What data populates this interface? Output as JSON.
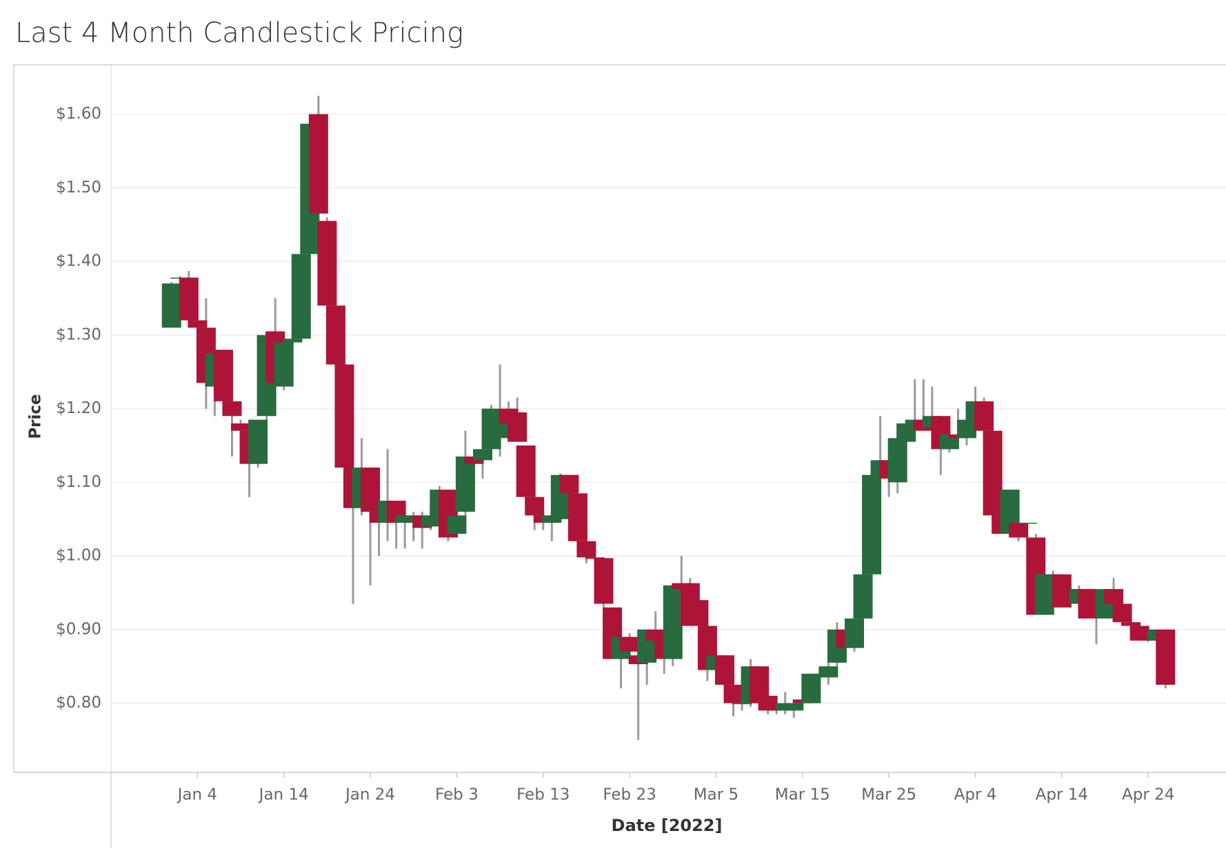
{
  "chart_data": {
    "type": "candlestick",
    "title": "Last 4 Month Candlestick Pricing",
    "x_label": "Date [2022]",
    "y_label": "Price",
    "up_color": "#276b3f",
    "down_color": "#ad1438",
    "wick_color": "#9a9a9a",
    "grid": true,
    "x": [
      "2022-01-01",
      "2022-01-02",
      "2022-01-03",
      "2022-01-04",
      "2022-01-05",
      "2022-01-06",
      "2022-01-07",
      "2022-01-08",
      "2022-01-09",
      "2022-01-10",
      "2022-01-11",
      "2022-01-12",
      "2022-01-13",
      "2022-01-14",
      "2022-01-15",
      "2022-01-16",
      "2022-01-17",
      "2022-01-18",
      "2022-01-19",
      "2022-01-20",
      "2022-01-21",
      "2022-01-22",
      "2022-01-23",
      "2022-01-24",
      "2022-01-25",
      "2022-01-26",
      "2022-01-27",
      "2022-01-28",
      "2022-01-29",
      "2022-01-30",
      "2022-01-31",
      "2022-02-01",
      "2022-02-02",
      "2022-02-03",
      "2022-02-04",
      "2022-02-05",
      "2022-02-06",
      "2022-02-07",
      "2022-02-08",
      "2022-02-09",
      "2022-02-10",
      "2022-02-11",
      "2022-02-12",
      "2022-02-13",
      "2022-02-14",
      "2022-02-15",
      "2022-02-16",
      "2022-02-17",
      "2022-02-18",
      "2022-02-19",
      "2022-02-20",
      "2022-02-21",
      "2022-02-22",
      "2022-02-23",
      "2022-02-24",
      "2022-02-25",
      "2022-02-26",
      "2022-02-27",
      "2022-02-28",
      "2022-03-01",
      "2022-03-02",
      "2022-03-03",
      "2022-03-04",
      "2022-03-05",
      "2022-03-06",
      "2022-03-07",
      "2022-03-08",
      "2022-03-09",
      "2022-03-10",
      "2022-03-11",
      "2022-03-12",
      "2022-03-13",
      "2022-03-14",
      "2022-03-15",
      "2022-03-16",
      "2022-03-17",
      "2022-03-18",
      "2022-03-19",
      "2022-03-20",
      "2022-03-21",
      "2022-03-22",
      "2022-03-23",
      "2022-03-24",
      "2022-03-25",
      "2022-03-26",
      "2022-03-27",
      "2022-03-28",
      "2022-03-29",
      "2022-03-30",
      "2022-03-31",
      "2022-04-01",
      "2022-04-02",
      "2022-04-03",
      "2022-04-04",
      "2022-04-05",
      "2022-04-06",
      "2022-04-07",
      "2022-04-08",
      "2022-04-09",
      "2022-04-10",
      "2022-04-11",
      "2022-04-12",
      "2022-04-13",
      "2022-04-14",
      "2022-04-15",
      "2022-04-16",
      "2022-04-17",
      "2022-04-18",
      "2022-04-19",
      "2022-04-20",
      "2022-04-21",
      "2022-04-22",
      "2022-04-23",
      "2022-04-24",
      "2022-04-25",
      "2022-04-26"
    ],
    "open": [
      1.31,
      1.377,
      1.378,
      1.32,
      1.31,
      1.23,
      1.28,
      1.21,
      1.18,
      1.17,
      1.125,
      1.19,
      1.305,
      1.23,
      1.29,
      1.295,
      1.41,
      1.6,
      1.455,
      1.34,
      1.26,
      1.12,
      1.065,
      1.12,
      1.06,
      1.045,
      1.075,
      1.045,
      1.045,
      1.055,
      1.04,
      1.05,
      1.09,
      1.03,
      1.06,
      1.135,
      1.13,
      1.145,
      1.16,
      1.2,
      1.195,
      1.15,
      1.08,
      1.055,
      1.045,
      1.05,
      1.11,
      1.085,
      1.02,
      0.998,
      0.997,
      0.93,
      0.86,
      0.89,
      0.865,
      0.855,
      0.9,
      0.89,
      0.86,
      0.963,
      0.963,
      0.94,
      0.905,
      0.845,
      0.865,
      0.825,
      0.8,
      0.8,
      0.85,
      0.81,
      0.795,
      0.79,
      0.79,
      0.805,
      0.8,
      0.835,
      0.835,
      0.855,
      0.9,
      0.875,
      0.915,
      0.975,
      1.105,
      1.13,
      1.1,
      1.155,
      1.175,
      1.185,
      1.175,
      1.19,
      1.145,
      1.165,
      1.16,
      1.185,
      1.21,
      1.17,
      1.09,
      1.03,
      1.045,
      1.044,
      1.025,
      0.92,
      0.95,
      0.975,
      0.955,
      0.935,
      0.955,
      0.95,
      0.915,
      0.955,
      0.935,
      0.91,
      0.905,
      0.89,
      0.885,
      0.9
    ],
    "high": [
      1.372,
      1.38,
      1.387,
      1.35,
      1.35,
      1.278,
      1.28,
      1.21,
      1.185,
      1.17,
      1.185,
      1.305,
      1.35,
      1.295,
      1.3,
      1.41,
      1.59,
      1.625,
      1.46,
      1.34,
      1.26,
      1.12,
      1.16,
      1.12,
      1.065,
      1.145,
      1.075,
      1.065,
      1.06,
      1.06,
      1.07,
      1.095,
      1.09,
      1.06,
      1.17,
      1.14,
      1.15,
      1.205,
      1.26,
      1.21,
      1.215,
      1.15,
      1.08,
      1.06,
      1.06,
      1.112,
      1.11,
      1.085,
      1.02,
      0.998,
      0.997,
      0.93,
      0.93,
      0.895,
      0.87,
      0.9,
      0.925,
      0.89,
      0.963,
      1.0,
      0.97,
      0.94,
      0.905,
      0.87,
      0.865,
      0.825,
      0.81,
      0.86,
      0.85,
      0.81,
      0.795,
      0.815,
      0.805,
      0.81,
      0.84,
      0.845,
      0.855,
      0.91,
      0.905,
      0.92,
      0.975,
      1.11,
      1.19,
      1.13,
      1.18,
      1.185,
      1.24,
      1.24,
      1.23,
      1.19,
      1.17,
      1.2,
      1.19,
      1.23,
      1.215,
      1.17,
      1.1,
      1.09,
      1.045,
      1.045,
      1.03,
      0.975,
      0.98,
      0.975,
      0.96,
      0.96,
      0.955,
      0.95,
      0.955,
      0.97,
      0.935,
      0.91,
      0.905,
      0.89,
      0.9,
      0.9
    ],
    "low": [
      1.31,
      1.375,
      1.32,
      1.31,
      1.2,
      1.19,
      1.19,
      1.135,
      1.165,
      1.08,
      1.12,
      1.185,
      1.225,
      1.225,
      1.285,
      1.29,
      1.41,
      1.465,
      1.34,
      1.26,
      1.12,
      0.935,
      1.055,
      0.96,
      1.0,
      1.02,
      1.01,
      1.01,
      1.02,
      1.01,
      1.035,
      1.045,
      1.02,
      1.025,
      1.055,
      1.12,
      1.105,
      1.14,
      1.135,
      1.18,
      1.155,
      1.07,
      1.035,
      1.035,
      1.02,
      1.045,
      1.085,
      1.01,
      0.99,
      0.99,
      0.93,
      0.86,
      0.82,
      0.865,
      0.75,
      0.825,
      0.88,
      0.84,
      0.85,
      0.95,
      0.905,
      0.905,
      0.83,
      0.84,
      0.825,
      0.782,
      0.79,
      0.795,
      0.795,
      0.785,
      0.785,
      0.785,
      0.78,
      0.8,
      0.8,
      0.83,
      0.825,
      0.85,
      0.865,
      0.87,
      0.91,
      0.97,
      1.1,
      1.08,
      1.085,
      1.15,
      1.17,
      1.17,
      1.17,
      1.11,
      1.14,
      1.155,
      1.15,
      1.18,
      1.17,
      1.055,
      1.03,
      1.025,
      1.02,
      1.044,
      0.92,
      0.92,
      0.945,
      0.93,
      0.93,
      0.93,
      0.915,
      0.88,
      0.915,
      0.935,
      0.91,
      0.895,
      0.885,
      0.883,
      0.88,
      0.82
    ],
    "close": [
      1.37,
      1.378,
      1.32,
      1.31,
      1.235,
      1.275,
      1.21,
      1.19,
      1.17,
      1.125,
      1.185,
      1.3,
      1.235,
      1.29,
      1.295,
      1.41,
      1.587,
      1.465,
      1.34,
      1.26,
      1.12,
      1.065,
      1.12,
      1.06,
      1.045,
      1.075,
      1.045,
      1.055,
      1.055,
      1.038,
      1.055,
      1.09,
      1.025,
      1.055,
      1.135,
      1.125,
      1.145,
      1.2,
      1.195,
      1.18,
      1.155,
      1.08,
      1.055,
      1.045,
      1.055,
      1.11,
      1.085,
      1.02,
      0.998,
      0.996,
      0.935,
      0.86,
      0.89,
      0.87,
      0.853,
      0.9,
      0.885,
      0.86,
      0.96,
      0.955,
      0.905,
      0.905,
      0.845,
      0.865,
      0.825,
      0.8,
      0.8,
      0.85,
      0.8,
      0.79,
      0.79,
      0.8,
      0.8,
      0.8,
      0.84,
      0.84,
      0.85,
      0.9,
      0.875,
      0.915,
      0.975,
      1.11,
      1.13,
      1.105,
      1.16,
      1.18,
      1.185,
      1.17,
      1.19,
      1.145,
      1.165,
      1.16,
      1.185,
      1.21,
      1.17,
      1.055,
      1.03,
      1.09,
      1.025,
      1.045,
      0.92,
      0.975,
      0.975,
      0.93,
      0.935,
      0.955,
      0.915,
      0.92,
      0.955,
      0.935,
      0.91,
      0.905,
      0.885,
      0.885,
      0.9,
      0.825
    ],
    "xlim": [
      "2021-12-25",
      "2022-05-03"
    ],
    "xticks": [
      {
        "value": "2022-01-04",
        "label": "Jan 4"
      },
      {
        "value": "2022-01-14",
        "label": "Jan 14"
      },
      {
        "value": "2022-01-24",
        "label": "Jan 24"
      },
      {
        "value": "2022-02-03",
        "label": "Feb 3"
      },
      {
        "value": "2022-02-13",
        "label": "Feb 13"
      },
      {
        "value": "2022-02-23",
        "label": "Feb 23"
      },
      {
        "value": "2022-03-05",
        "label": "Mar 5"
      },
      {
        "value": "2022-03-15",
        "label": "Mar 15"
      },
      {
        "value": "2022-03-25",
        "label": "Mar 25"
      },
      {
        "value": "2022-04-04",
        "label": "Apr 4"
      },
      {
        "value": "2022-04-14",
        "label": "Apr 14"
      },
      {
        "value": "2022-04-24",
        "label": "Apr 24"
      }
    ],
    "ylim": [
      0.706,
      1.667
    ],
    "yticks": [
      {
        "value": 0.8,
        "label": "$0.80"
      },
      {
        "value": 0.9,
        "label": "$0.90"
      },
      {
        "value": 1.0,
        "label": "$1.00"
      },
      {
        "value": 1.1,
        "label": "$1.10"
      },
      {
        "value": 1.2,
        "label": "$1.20"
      },
      {
        "value": 1.3,
        "label": "$1.30"
      },
      {
        "value": 1.4,
        "label": "$1.40"
      },
      {
        "value": 1.5,
        "label": "$1.50"
      },
      {
        "value": 1.6,
        "label": "$1.60"
      }
    ]
  }
}
